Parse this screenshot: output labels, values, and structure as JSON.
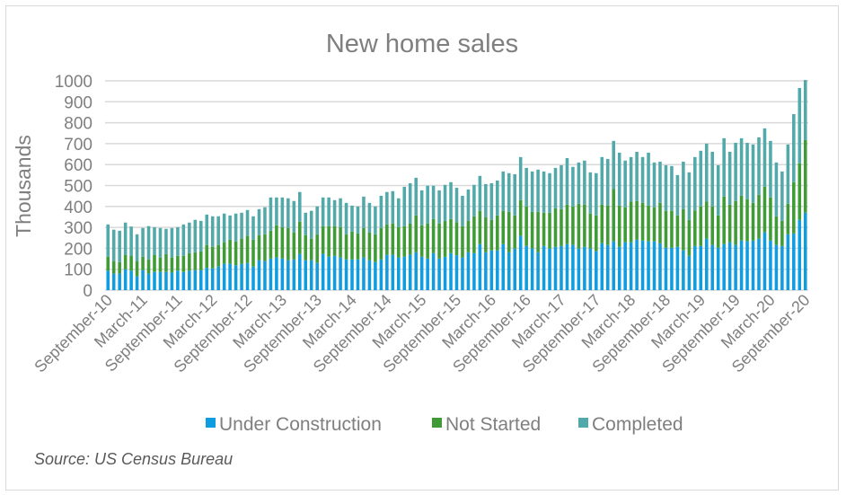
{
  "chart_data": {
    "type": "bar",
    "stacked": true,
    "title": "New home sales",
    "ylabel": "Thousands",
    "xlabel": "",
    "ylim": [
      0,
      1000
    ],
    "yticks": [
      0,
      100,
      200,
      300,
      400,
      500,
      600,
      700,
      800,
      900,
      1000
    ],
    "grid": true,
    "legend_position": "bottom",
    "x_start": "September-10",
    "x_end": "September-20",
    "frequency": "monthly",
    "xtick_labels": [
      "September-10",
      "March-11",
      "September-11",
      "March-12",
      "September-12",
      "March-13",
      "September-13",
      "March-14",
      "September-14",
      "March-15",
      "September-15",
      "March-16",
      "September-16",
      "March-17",
      "September-17",
      "March-18",
      "September-18",
      "March-19",
      "September-19",
      "March-20",
      "September-20"
    ],
    "series": [
      {
        "name": "Under Construction",
        "color": "#0f9de0",
        "values": [
          93,
          79,
          79,
          100,
          93,
          67,
          96,
          79,
          87,
          87,
          87,
          84,
          93,
          87,
          93,
          96,
          96,
          107,
          104,
          113,
          126,
          126,
          119,
          126,
          130,
          113,
          143,
          139,
          151,
          156,
          151,
          143,
          147,
          173,
          143,
          143,
          130,
          173,
          160,
          164,
          156,
          147,
          147,
          147,
          156,
          143,
          134,
          147,
          169,
          169,
          156,
          160,
          169,
          181,
          160,
          151,
          177,
          151,
          160,
          177,
          167,
          156,
          181,
          177,
          220,
          181,
          190,
          190,
          220,
          181,
          199,
          259,
          211,
          199,
          181,
          211,
          199,
          207,
          211,
          220,
          216,
          199,
          207,
          199,
          186,
          224,
          216,
          233,
          207,
          229,
          229,
          241,
          237,
          233,
          233,
          224,
          203,
          203,
          207,
          190,
          164,
          211,
          211,
          246,
          216,
          203,
          220,
          229,
          216,
          237,
          233,
          237,
          246,
          276,
          237,
          216,
          211,
          267,
          271,
          336,
          370
        ]
      },
      {
        "name": "Not Started",
        "color": "#3e9b35",
        "values": [
          67,
          60,
          55,
          69,
          70,
          72,
          64,
          68,
          82,
          69,
          86,
          72,
          71,
          77,
          84,
          85,
          90,
          109,
          103,
          103,
          103,
          115,
          114,
          120,
          129,
          128,
          120,
          128,
          133,
          154,
          150,
          154,
          129,
          154,
          120,
          103,
          137,
          133,
          146,
          142,
          145,
          120,
          133,
          124,
          141,
          133,
          133,
          150,
          145,
          150,
          145,
          146,
          150,
          176,
          150,
          168,
          163,
          168,
          171,
          163,
          158,
          150,
          150,
          176,
          159,
          168,
          146,
          167,
          159,
          193,
          158,
          171,
          189,
          175,
          193,
          159,
          171,
          184,
          176,
          189,
          184,
          214,
          202,
          167,
          171,
          185,
          188,
          250,
          197,
          167,
          194,
          185,
          180,
          171,
          163,
          193,
          176,
          176,
          150,
          197,
          172,
          170,
          189,
          177,
          184,
          154,
          227,
          180,
          210,
          214,
          201,
          180,
          210,
          218,
          206,
          137,
          120,
          146,
          245,
          270,
          347
        ]
      },
      {
        "name": "Completed",
        "color": "#52a9a9",
        "values": [
          154,
          150,
          150,
          154,
          141,
          128,
          137,
          159,
          132,
          141,
          120,
          141,
          137,
          150,
          146,
          155,
          145,
          145,
          146,
          137,
          137,
          116,
          133,
          124,
          124,
          112,
          124,
          129,
          159,
          133,
          142,
          142,
          150,
          142,
          107,
          133,
          133,
          137,
          137,
          124,
          138,
          150,
          124,
          129,
          150,
          141,
          133,
          154,
          155,
          154,
          138,
          188,
          192,
          180,
          167,
          180,
          159,
          158,
          172,
          176,
          164,
          145,
          150,
          150,
          167,
          158,
          175,
          167,
          188,
          185,
          197,
          206,
          184,
          193,
          202,
          197,
          189,
          193,
          210,
          222,
          189,
          197,
          210,
          197,
          202,
          227,
          223,
          230,
          253,
          223,
          213,
          235,
          219,
          253,
          214,
          197,
          218,
          214,
          193,
          227,
          227,
          255,
          266,
          277,
          261,
          240,
          279,
          252,
          278,
          275,
          270,
          279,
          274,
          279,
          270,
          257,
          236,
          283,
          325,
          360,
          287
        ]
      }
    ],
    "source": "Source: US Census Bureau"
  }
}
